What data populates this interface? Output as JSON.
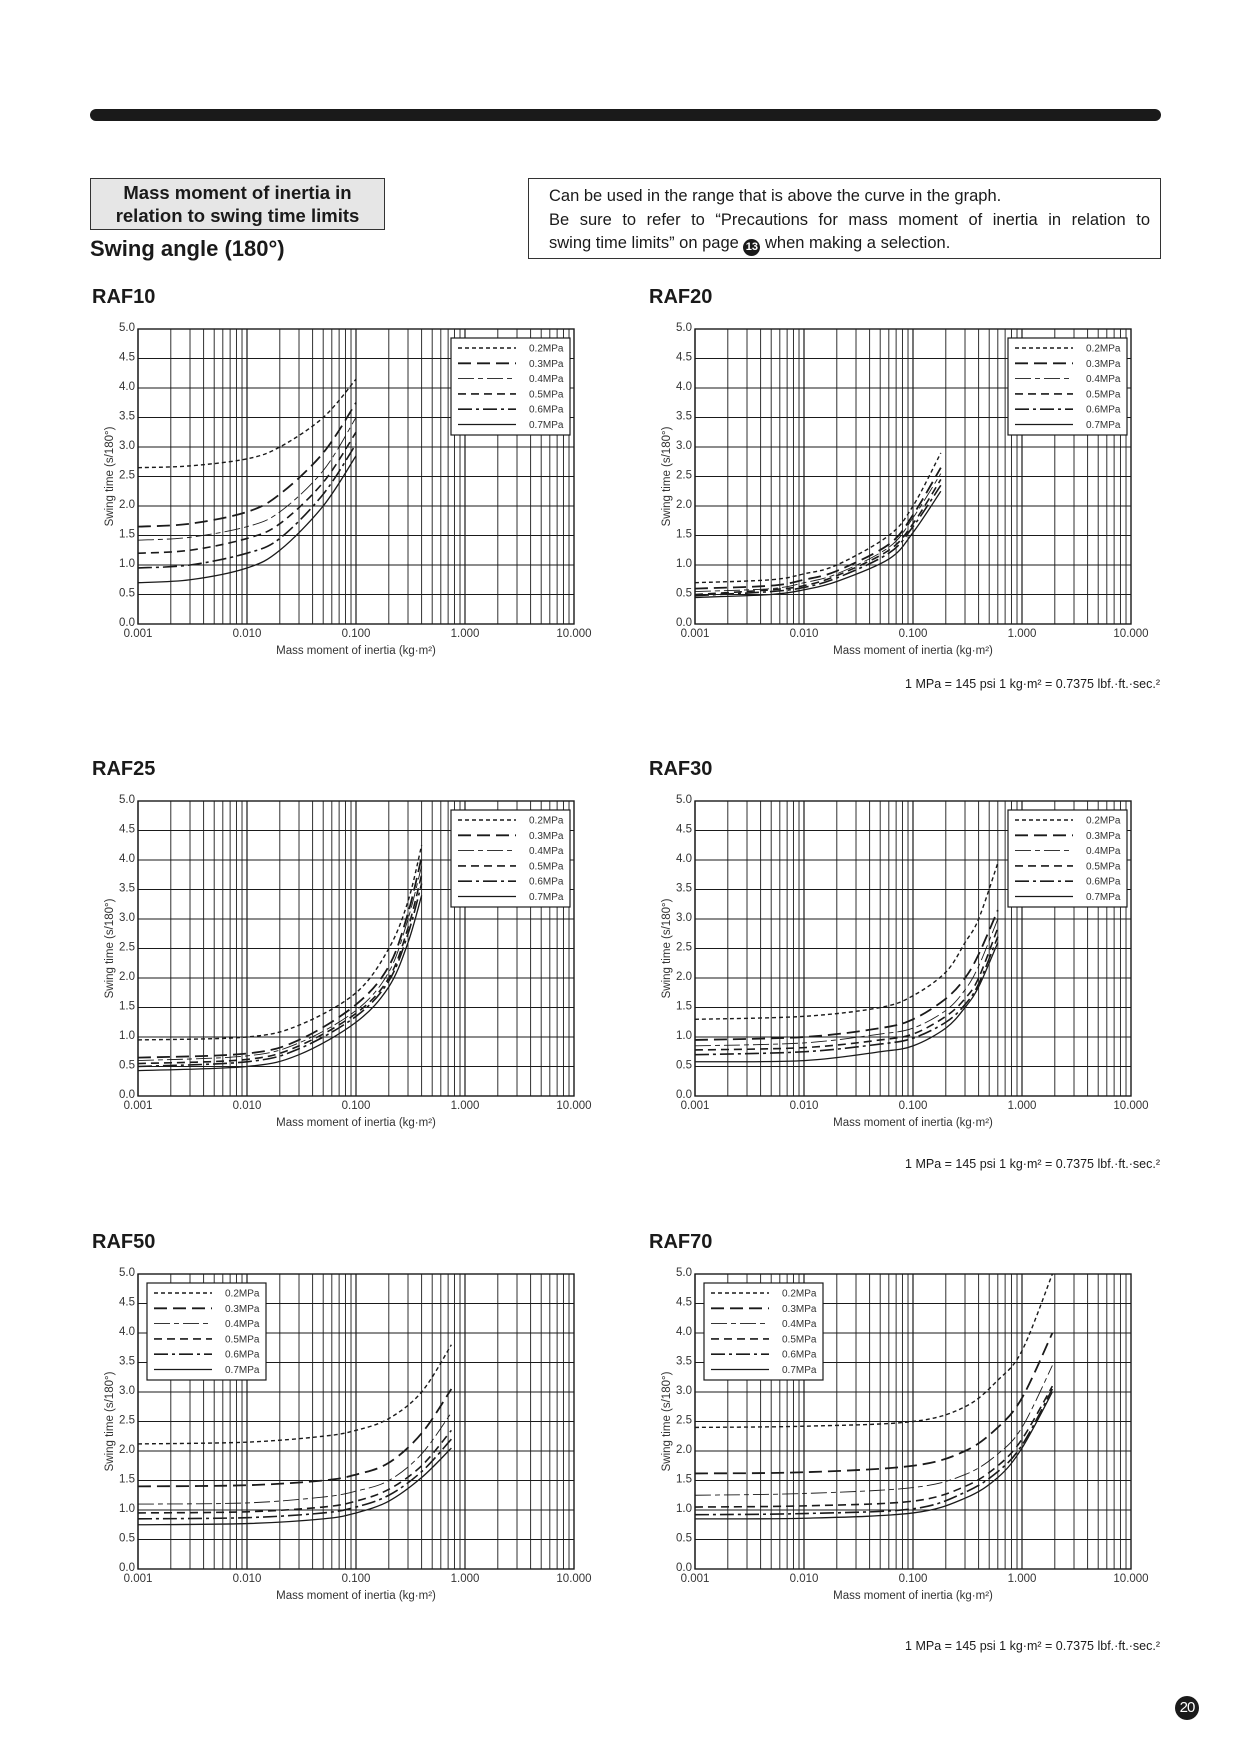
{
  "header": {
    "section_box_line1": "Mass moment of inertia in",
    "section_box_line2": "relation to swing time limits",
    "subtitle": "Swing angle (180°)",
    "note_line1": "Can be used in the range that is above the curve in the graph.",
    "note_line2": "Be sure to refer to “Precautions for mass moment of inertia in relation to",
    "note_line3_before": "swing time limits” on page ",
    "note_page_ref": "13",
    "note_line3_after": " when making a selection."
  },
  "conversion_note": "1 MPa = 145 psi    1 kg·m² = 0.7375 lbf.·ft.·sec.²",
  "page_number": "20",
  "chart_data": [
    {
      "type": "line",
      "title": "RAF10",
      "xlabel": "Mass moment of inertia (kg·m²)",
      "ylabel": "Swing time (s/180°)",
      "xscale": "log",
      "xlim": [
        0.001,
        10
      ],
      "ylim": [
        0,
        5
      ],
      "grid": true,
      "legend_position": "top-right",
      "x_ticks": [
        {
          "v": 0.001,
          "label": "0.001"
        },
        {
          "v": 0.01,
          "label": "0.010"
        },
        {
          "v": 0.1,
          "label": "0.100"
        },
        {
          "v": 1,
          "label": "1.000"
        },
        {
          "v": 10,
          "label": "10.000"
        }
      ],
      "y_ticks": [
        "0.0",
        "0.5",
        "1.0",
        "1.5",
        "2.0",
        "2.5",
        "3.0",
        "3.5",
        "4.0",
        "4.5",
        "5.0"
      ],
      "x": [
        0.001,
        0.003,
        0.01,
        0.02,
        0.05,
        0.1
      ],
      "series": [
        {
          "name": "0.2MPa",
          "values": [
            2.65,
            2.68,
            2.8,
            3.0,
            3.5,
            4.15
          ]
        },
        {
          "name": "0.3MPa",
          "values": [
            1.65,
            1.7,
            1.9,
            2.2,
            2.9,
            3.75
          ]
        },
        {
          "name": "0.4MPa",
          "values": [
            1.42,
            1.47,
            1.65,
            1.9,
            2.6,
            3.5
          ]
        },
        {
          "name": "0.5MPa",
          "values": [
            1.2,
            1.25,
            1.45,
            1.7,
            2.4,
            3.25
          ]
        },
        {
          "name": "0.6MPa",
          "values": [
            0.95,
            1.0,
            1.2,
            1.45,
            2.2,
            3.05
          ]
        },
        {
          "name": "0.7MPa",
          "values": [
            0.7,
            0.75,
            0.95,
            1.25,
            2.0,
            2.85
          ]
        }
      ]
    },
    {
      "type": "line",
      "title": "RAF20",
      "xlabel": "Mass moment of inertia (kg·m²)",
      "ylabel": "Swing time (s/180°)",
      "xscale": "log",
      "xlim": [
        0.001,
        10
      ],
      "ylim": [
        0,
        5
      ],
      "grid": true,
      "legend_position": "top-right",
      "x_ticks": [
        {
          "v": 0.001,
          "label": "0.001"
        },
        {
          "v": 0.01,
          "label": "0.010"
        },
        {
          "v": 0.1,
          "label": "0.100"
        },
        {
          "v": 1,
          "label": "1.000"
        },
        {
          "v": 10,
          "label": "10.000"
        }
      ],
      "y_ticks": [
        "0.0",
        "0.5",
        "1.0",
        "1.5",
        "2.0",
        "2.5",
        "3.0",
        "3.5",
        "4.0",
        "4.5",
        "5.0"
      ],
      "x": [
        0.001,
        0.005,
        0.01,
        0.02,
        0.06,
        0.1,
        0.18
      ],
      "series": [
        {
          "name": "0.2MPa",
          "values": [
            0.7,
            0.75,
            0.85,
            1.0,
            1.5,
            2.0,
            2.9
          ]
        },
        {
          "name": "0.3MPa",
          "values": [
            0.6,
            0.65,
            0.75,
            0.9,
            1.35,
            1.85,
            2.65
          ]
        },
        {
          "name": "0.4MPa",
          "values": [
            0.55,
            0.6,
            0.7,
            0.85,
            1.3,
            1.8,
            2.55
          ]
        },
        {
          "name": "0.5MPa",
          "values": [
            0.5,
            0.58,
            0.65,
            0.82,
            1.25,
            1.7,
            2.45
          ]
        },
        {
          "name": "0.6MPa",
          "values": [
            0.48,
            0.55,
            0.62,
            0.78,
            1.2,
            1.65,
            2.35
          ]
        },
        {
          "name": "0.7MPa",
          "values": [
            0.45,
            0.5,
            0.58,
            0.72,
            1.1,
            1.55,
            2.25
          ]
        }
      ]
    },
    {
      "type": "line",
      "title": "RAF25",
      "xlabel": "Mass moment of inertia (kg·m²)",
      "ylabel": "Swing time (s/180°)",
      "xscale": "log",
      "xlim": [
        0.001,
        10
      ],
      "ylim": [
        0,
        5
      ],
      "grid": true,
      "legend_position": "top-right",
      "x_ticks": [
        {
          "v": 0.001,
          "label": "0.001"
        },
        {
          "v": 0.01,
          "label": "0.010"
        },
        {
          "v": 0.1,
          "label": "0.100"
        },
        {
          "v": 1,
          "label": "1.000"
        },
        {
          "v": 10,
          "label": "10.000"
        }
      ],
      "y_ticks": [
        "0.0",
        "0.5",
        "1.0",
        "1.5",
        "2.0",
        "2.5",
        "3.0",
        "3.5",
        "4.0",
        "4.5",
        "5.0"
      ],
      "x": [
        0.001,
        0.01,
        0.03,
        0.1,
        0.2,
        0.3,
        0.4
      ],
      "series": [
        {
          "name": "0.2MPa",
          "values": [
            0.95,
            1.0,
            1.2,
            1.75,
            2.5,
            3.3,
            4.25
          ]
        },
        {
          "name": "0.3MPa",
          "values": [
            0.65,
            0.72,
            0.95,
            1.55,
            2.2,
            3.1,
            4.05
          ]
        },
        {
          "name": "0.4MPa",
          "values": [
            0.6,
            0.68,
            0.9,
            1.45,
            2.1,
            3.0,
            3.9
          ]
        },
        {
          "name": "0.5MPa",
          "values": [
            0.55,
            0.62,
            0.85,
            1.4,
            2.0,
            2.85,
            3.75
          ]
        },
        {
          "name": "0.6MPa",
          "values": [
            0.5,
            0.58,
            0.8,
            1.35,
            1.95,
            2.75,
            3.6
          ]
        },
        {
          "name": "0.7MPa",
          "values": [
            0.43,
            0.5,
            0.7,
            1.25,
            1.85,
            2.6,
            3.4
          ]
        }
      ]
    },
    {
      "type": "line",
      "title": "RAF30",
      "xlabel": "Mass moment of inertia (kg·m²)",
      "ylabel": "Swing time (s/180°)",
      "xscale": "log",
      "xlim": [
        0.001,
        10
      ],
      "ylim": [
        0,
        5
      ],
      "grid": true,
      "legend_position": "top-right",
      "x_ticks": [
        {
          "v": 0.001,
          "label": "0.001"
        },
        {
          "v": 0.01,
          "label": "0.010"
        },
        {
          "v": 0.1,
          "label": "0.100"
        },
        {
          "v": 1,
          "label": "1.000"
        },
        {
          "v": 10,
          "label": "10.000"
        }
      ],
      "y_ticks": [
        "0.0",
        "0.5",
        "1.0",
        "1.5",
        "2.0",
        "2.5",
        "3.0",
        "3.5",
        "4.0",
        "4.5",
        "5.0"
      ],
      "x": [
        0.001,
        0.01,
        0.05,
        0.1,
        0.2,
        0.3,
        0.4,
        0.6
      ],
      "series": [
        {
          "name": "0.2MPa",
          "values": [
            1.3,
            1.35,
            1.5,
            1.7,
            2.1,
            2.6,
            3.0,
            3.95
          ]
        },
        {
          "name": "0.3MPa",
          "values": [
            0.95,
            1.0,
            1.15,
            1.3,
            1.65,
            2.0,
            2.4,
            3.15
          ]
        },
        {
          "name": "0.4MPa",
          "values": [
            0.85,
            0.9,
            1.05,
            1.15,
            1.45,
            1.8,
            2.2,
            3.0
          ]
        },
        {
          "name": "0.5MPa",
          "values": [
            0.78,
            0.82,
            0.95,
            1.05,
            1.35,
            1.65,
            2.0,
            2.85
          ]
        },
        {
          "name": "0.6MPa",
          "values": [
            0.7,
            0.75,
            0.88,
            0.98,
            1.25,
            1.55,
            1.9,
            2.7
          ]
        },
        {
          "name": "0.7MPa",
          "values": [
            0.58,
            0.6,
            0.75,
            0.85,
            1.15,
            1.5,
            1.85,
            2.6
          ]
        }
      ]
    },
    {
      "type": "line",
      "title": "RAF50",
      "xlabel": "Mass moment of inertia (kg·m²)",
      "ylabel": "Swing time (s/180°)",
      "xscale": "log",
      "xlim": [
        0.001,
        10
      ],
      "ylim": [
        0,
        5
      ],
      "grid": true,
      "legend_position": "top-left",
      "x_ticks": [
        {
          "v": 0.001,
          "label": "0.001"
        },
        {
          "v": 0.01,
          "label": "0.010"
        },
        {
          "v": 0.1,
          "label": "0.100"
        },
        {
          "v": 1,
          "label": "1.000"
        },
        {
          "v": 10,
          "label": "10.000"
        }
      ],
      "y_ticks": [
        "0.0",
        "0.5",
        "1.0",
        "1.5",
        "2.0",
        "2.5",
        "3.0",
        "3.5",
        "4.0",
        "4.5",
        "5.0"
      ],
      "x": [
        0.001,
        0.01,
        0.05,
        0.1,
        0.2,
        0.4,
        0.75
      ],
      "series": [
        {
          "name": "0.2MPa",
          "values": [
            2.12,
            2.15,
            2.25,
            2.35,
            2.55,
            3.0,
            3.8
          ]
        },
        {
          "name": "0.3MPa",
          "values": [
            1.4,
            1.42,
            1.5,
            1.6,
            1.8,
            2.3,
            3.05
          ]
        },
        {
          "name": "0.4MPa",
          "values": [
            1.1,
            1.12,
            1.22,
            1.32,
            1.5,
            1.95,
            2.65
          ]
        },
        {
          "name": "0.5MPa",
          "values": [
            0.95,
            0.97,
            1.05,
            1.15,
            1.35,
            1.75,
            2.35
          ]
        },
        {
          "name": "0.6MPa",
          "values": [
            0.85,
            0.87,
            0.95,
            1.05,
            1.25,
            1.65,
            2.2
          ]
        },
        {
          "name": "0.7MPa",
          "values": [
            0.75,
            0.77,
            0.85,
            0.95,
            1.15,
            1.55,
            2.05
          ]
        }
      ]
    },
    {
      "type": "line",
      "title": "RAF70",
      "xlabel": "Mass moment of inertia (kg·m²)",
      "ylabel": "Swing time (s/180°)",
      "xscale": "log",
      "xlim": [
        0.001,
        10
      ],
      "ylim": [
        0,
        5
      ],
      "grid": true,
      "legend_position": "top-left",
      "x_ticks": [
        {
          "v": 0.001,
          "label": "0.001"
        },
        {
          "v": 0.01,
          "label": "0.010"
        },
        {
          "v": 0.1,
          "label": "0.100"
        },
        {
          "v": 1,
          "label": "1.000"
        },
        {
          "v": 10,
          "label": "10.000"
        }
      ],
      "y_ticks": [
        "0.0",
        "0.5",
        "1.0",
        "1.5",
        "2.0",
        "2.5",
        "3.0",
        "3.5",
        "4.0",
        "4.5",
        "5.0"
      ],
      "x": [
        0.001,
        0.01,
        0.1,
        0.3,
        0.6,
        1.0,
        1.9
      ],
      "series": [
        {
          "name": "0.2MPa",
          "values": [
            2.4,
            2.42,
            2.5,
            2.75,
            3.2,
            3.7,
            5.0
          ]
        },
        {
          "name": "0.3MPa",
          "values": [
            1.62,
            1.64,
            1.75,
            2.0,
            2.4,
            2.9,
            4.0
          ]
        },
        {
          "name": "0.4MPa",
          "values": [
            1.25,
            1.28,
            1.38,
            1.6,
            1.95,
            2.4,
            3.45
          ]
        },
        {
          "name": "0.5MPa",
          "values": [
            1.05,
            1.07,
            1.15,
            1.4,
            1.75,
            2.2,
            3.1
          ]
        },
        {
          "name": "0.6MPa",
          "values": [
            0.92,
            0.94,
            1.02,
            1.3,
            1.65,
            2.1,
            3.05
          ]
        },
        {
          "name": "0.7MPa",
          "values": [
            0.85,
            0.86,
            0.95,
            1.2,
            1.55,
            2.05,
            3.0
          ]
        }
      ]
    }
  ]
}
